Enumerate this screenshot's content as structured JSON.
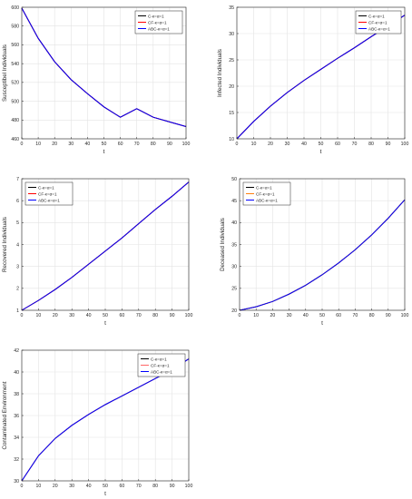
{
  "chart_data": [
    {
      "type": "line",
      "xlabel": "t",
      "ylabel": "Susceptibel Individuals",
      "xlim": [
        0,
        100
      ],
      "ylim": [
        460,
        600
      ],
      "xticks": [
        0,
        10,
        20,
        30,
        40,
        50,
        60,
        70,
        80,
        90,
        100
      ],
      "yticks": [
        460,
        480,
        500,
        520,
        540,
        560,
        580,
        600
      ],
      "grid": true,
      "legend_position": "top-right",
      "x": [
        0,
        10,
        20,
        30,
        40,
        50,
        60,
        70,
        80,
        90,
        100
      ],
      "series": [
        {
          "name": "C-κ=α=1",
          "color": "#000000",
          "values": [
            599,
            567,
            542,
            523,
            508,
            494,
            483,
            492,
            483,
            478,
            473
          ]
        },
        {
          "name": "CF-κ=α=1",
          "color": "#ff0000",
          "values": [
            599,
            567,
            542,
            523,
            508,
            494,
            483,
            492,
            483,
            478,
            473
          ]
        },
        {
          "name": "ABC-κ=α=1",
          "color": "#0000ff",
          "values": [
            599,
            567,
            542,
            523,
            508,
            494,
            483,
            492,
            483,
            478,
            473
          ]
        }
      ]
    },
    {
      "type": "line",
      "xlabel": "t",
      "ylabel": "Infected Individuals",
      "xlim": [
        0,
        100
      ],
      "ylim": [
        10,
        35
      ],
      "xticks": [
        0,
        10,
        20,
        30,
        40,
        50,
        60,
        70,
        80,
        90,
        100
      ],
      "yticks": [
        10,
        15,
        20,
        25,
        30,
        35
      ],
      "grid": true,
      "legend_position": "top-right",
      "x": [
        0,
        10,
        20,
        30,
        40,
        50,
        60,
        70,
        80,
        90,
        100
      ],
      "series": [
        {
          "name": "C-κ=α=1",
          "color": "#000000",
          "values": [
            10,
            13.3,
            16.2,
            18.8,
            21.1,
            23.2,
            25.3,
            27.3,
            29.4,
            31.4,
            33.5
          ]
        },
        {
          "name": "CF-κ=α=1",
          "color": "#ff0000",
          "values": [
            10,
            13.3,
            16.2,
            18.8,
            21.1,
            23.2,
            25.3,
            27.3,
            29.4,
            31.4,
            33.5
          ]
        },
        {
          "name": "ABC-κ=α=1",
          "color": "#0000ff",
          "values": [
            10,
            13.3,
            16.2,
            18.8,
            21.1,
            23.2,
            25.3,
            27.3,
            29.4,
            31.4,
            33.5
          ]
        }
      ]
    },
    {
      "type": "line",
      "xlabel": "t",
      "ylabel": "Recovered Individuals",
      "xlim": [
        0,
        100
      ],
      "ylim": [
        1,
        7
      ],
      "xticks": [
        0,
        10,
        20,
        30,
        40,
        50,
        60,
        70,
        80,
        90,
        100
      ],
      "yticks": [
        1,
        2,
        3,
        4,
        5,
        6,
        7
      ],
      "grid": true,
      "legend_position": "top-left",
      "x": [
        0,
        10,
        20,
        30,
        40,
        50,
        60,
        70,
        80,
        90,
        100
      ],
      "series": [
        {
          "name": "C-κ=α=1",
          "color": "#000000",
          "values": [
            1,
            1.45,
            1.95,
            2.5,
            3.1,
            3.7,
            4.3,
            4.95,
            5.6,
            6.2,
            6.85
          ]
        },
        {
          "name": "CF-κ=α=1",
          "color": "#ff0000",
          "values": [
            1,
            1.45,
            1.95,
            2.5,
            3.1,
            3.7,
            4.3,
            4.95,
            5.6,
            6.2,
            6.85
          ]
        },
        {
          "name": "ABC-κ=α=1",
          "color": "#0000ff",
          "values": [
            1,
            1.45,
            1.95,
            2.5,
            3.1,
            3.7,
            4.3,
            4.95,
            5.6,
            6.2,
            6.85
          ]
        }
      ]
    },
    {
      "type": "line",
      "xlabel": "t",
      "ylabel": "Deceased Individuals",
      "xlim": [
        0,
        100
      ],
      "ylim": [
        20,
        50
      ],
      "xticks": [
        0,
        10,
        20,
        30,
        40,
        50,
        60,
        70,
        80,
        90,
        100
      ],
      "yticks": [
        20,
        25,
        30,
        35,
        40,
        45,
        50
      ],
      "grid": true,
      "legend_position": "top-left",
      "x": [
        0,
        10,
        20,
        30,
        40,
        50,
        60,
        70,
        80,
        90,
        100
      ],
      "series": [
        {
          "name": "C-κ=α=1",
          "color": "#000000",
          "values": [
            20,
            20.8,
            22.0,
            23.7,
            25.7,
            28.1,
            30.8,
            33.8,
            37.2,
            41.0,
            45.2
          ]
        },
        {
          "name": "CF-κ=α=1",
          "color": "#ff7f0e",
          "values": [
            20,
            20.8,
            22.0,
            23.7,
            25.7,
            28.1,
            30.8,
            33.8,
            37.2,
            41.0,
            45.2
          ]
        },
        {
          "name": "ABC-κ=α=1",
          "color": "#0000ff",
          "values": [
            20,
            20.8,
            22.0,
            23.7,
            25.7,
            28.1,
            30.8,
            33.8,
            37.2,
            41.0,
            45.2
          ]
        }
      ]
    },
    {
      "type": "line",
      "xlabel": "t",
      "ylabel": "Contaminated Environment",
      "xlim": [
        0,
        100
      ],
      "ylim": [
        30,
        42
      ],
      "xticks": [
        0,
        10,
        20,
        30,
        40,
        50,
        60,
        70,
        80,
        90,
        100
      ],
      "yticks": [
        30,
        32,
        34,
        36,
        38,
        40,
        42
      ],
      "grid": true,
      "legend_position": "top-right",
      "x": [
        0,
        10,
        20,
        30,
        40,
        50,
        60,
        70,
        80,
        90,
        100
      ],
      "series": [
        {
          "name": "C-κ=α=1",
          "color": "#000000",
          "values": [
            30,
            32.3,
            33.9,
            35.1,
            36.1,
            37.0,
            37.8,
            38.6,
            39.4,
            40.2,
            41.2
          ]
        },
        {
          "name": "CF-κ=α=1",
          "color": "#ff6666",
          "values": [
            30,
            32.3,
            33.9,
            35.1,
            36.1,
            37.0,
            37.8,
            38.6,
            39.4,
            40.2,
            41.2
          ]
        },
        {
          "name": "ABC-κ=α=1",
          "color": "#0000ff",
          "values": [
            30,
            32.3,
            33.9,
            35.1,
            36.1,
            37.0,
            37.8,
            38.6,
            39.4,
            40.2,
            41.2
          ]
        }
      ]
    }
  ]
}
